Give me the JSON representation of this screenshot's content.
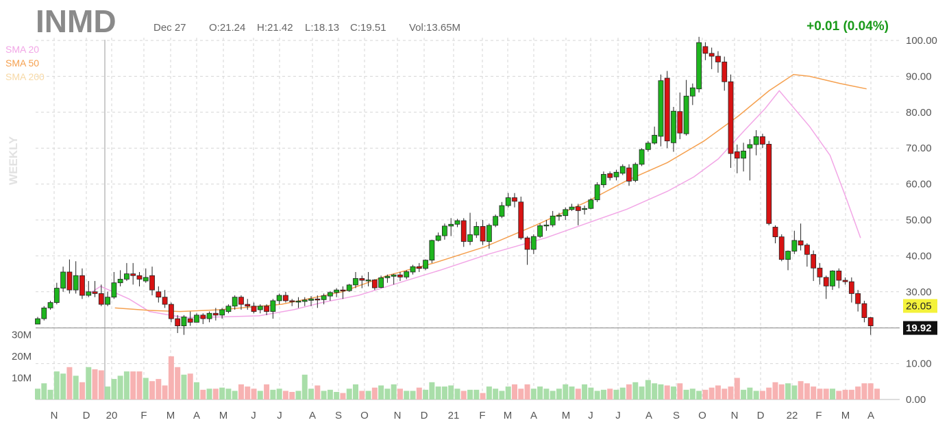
{
  "header": {
    "ticker": "INMD",
    "date": "Dec 27",
    "open": "O:21.24",
    "high": "H:21.42",
    "low": "L:18.13",
    "close": "C:19.51",
    "volume": "Vol:13.65M",
    "change": "+0.01 (0.04%)",
    "timeframe": "WEEKLY"
  },
  "legend": [
    {
      "label": "SMA 20",
      "color": "#f2a6e6"
    },
    {
      "label": "SMA 50",
      "color": "#f5a04f"
    },
    {
      "label": "SMA 200",
      "color": "#f7d9a6"
    }
  ],
  "colors": {
    "up": "#1eb51e",
    "down": "#d81313",
    "vol_up": "#a9dea9",
    "vol_down": "#f7b2b2",
    "grid": "#d6d6d6"
  },
  "chart_data": {
    "type": "candlestick",
    "price_axis": {
      "min": 0,
      "max": 100,
      "ticks": [
        "100.00",
        "90.00",
        "80.00",
        "70.00",
        "60.00",
        "50.00",
        "40.00",
        "30.00",
        "20.00",
        "10.00",
        "0.00"
      ]
    },
    "volume_axis": {
      "ticks": [
        "30M",
        "20M",
        "10M"
      ],
      "max_millions": 30
    },
    "x_labels": [
      "N",
      "D",
      "20",
      "F",
      "M",
      "A",
      "M",
      "J",
      "J",
      "A",
      "S",
      "O",
      "N",
      "D",
      "21",
      "F",
      "M",
      "A",
      "M",
      "J",
      "J",
      "A",
      "S",
      "O",
      "N",
      "D",
      "22",
      "F",
      "M",
      "A"
    ],
    "price_labels": {
      "last": "26.05",
      "crosshair": "19.92"
    },
    "candles": [
      [
        21.0,
        22.5,
        21.0,
        23.0
      ],
      [
        22.5,
        25.5,
        22.0,
        26.0
      ],
      [
        25.5,
        27.0,
        25.0,
        27.5
      ],
      [
        27.0,
        31.0,
        26.5,
        32.5
      ],
      [
        31.0,
        35.5,
        30.0,
        37.0
      ],
      [
        35.5,
        30.5,
        29.5,
        39.0
      ],
      [
        30.5,
        34.5,
        29.5,
        38.5
      ],
      [
        34.5,
        29.0,
        28.0,
        36.5
      ],
      [
        29.0,
        30.0,
        28.5,
        33.0
      ],
      [
        30.0,
        29.5,
        28.5,
        33.0
      ],
      [
        29.5,
        26.5,
        26.0,
        32.0
      ],
      [
        26.5,
        28.5,
        26.0,
        30.0
      ],
      [
        28.5,
        32.5,
        28.0,
        35.5
      ],
      [
        32.5,
        33.5,
        31.5,
        36.0
      ],
      [
        33.5,
        35.0,
        33.0,
        38.0
      ],
      [
        35.0,
        34.5,
        32.0,
        38.0
      ],
      [
        34.5,
        33.5,
        31.5,
        35.5
      ],
      [
        33.0,
        34.0,
        32.5,
        36.5
      ],
      [
        34.5,
        30.5,
        29.0,
        37.0
      ],
      [
        30.0,
        28.5,
        27.0,
        31.5
      ],
      [
        28.5,
        26.5,
        25.5,
        30.5
      ],
      [
        26.5,
        22.5,
        21.5,
        27.0
      ],
      [
        22.5,
        20.5,
        18.5,
        23.5
      ],
      [
        20.5,
        23.0,
        18.0,
        23.5
      ],
      [
        22.5,
        21.5,
        20.5,
        24.5
      ],
      [
        21.5,
        23.5,
        21.5,
        24.0
      ],
      [
        23.5,
        22.5,
        21.0,
        24.0
      ],
      [
        22.5,
        24.0,
        21.5,
        24.5
      ],
      [
        24.0,
        23.5,
        22.0,
        25.5
      ],
      [
        23.5,
        25.0,
        22.5,
        25.5
      ],
      [
        24.5,
        26.0,
        24.0,
        26.5
      ],
      [
        26.0,
        28.5,
        25.0,
        29.0
      ],
      [
        28.5,
        26.5,
        25.0,
        29.0
      ],
      [
        26.5,
        26.0,
        25.0,
        28.0
      ],
      [
        26.0,
        24.5,
        24.0,
        27.0
      ],
      [
        25.0,
        26.0,
        24.0,
        26.5
      ],
      [
        26.0,
        24.5,
        23.5,
        26.5
      ],
      [
        24.5,
        27.5,
        22.5,
        28.0
      ],
      [
        27.5,
        29.0,
        26.5,
        29.5
      ],
      [
        29.0,
        27.5,
        27.0,
        30.0
      ],
      [
        27.5,
        27.3,
        26.0,
        28.0
      ],
      [
        27.3,
        27.4,
        25.5,
        28.5
      ],
      [
        27.3,
        27.7,
        26.0,
        28.5
      ],
      [
        27.6,
        28.0,
        26.0,
        28.8
      ],
      [
        28.0,
        27.7,
        25.5,
        29.0
      ],
      [
        27.8,
        28.9,
        26.5,
        29.5
      ],
      [
        28.8,
        29.8,
        27.5,
        30.2
      ],
      [
        29.8,
        30.5,
        28.5,
        31.0
      ],
      [
        30.5,
        30.3,
        28.0,
        31.5
      ],
      [
        30.3,
        31.9,
        30.0,
        32.2
      ],
      [
        31.9,
        33.7,
        31.0,
        35.5
      ],
      [
        33.7,
        33.2,
        31.0,
        34.5
      ],
      [
        33.2,
        33.3,
        31.5,
        35.5
      ],
      [
        33.3,
        31.1,
        30.5,
        33.5
      ],
      [
        31.2,
        33.9,
        31.0,
        34.5
      ],
      [
        33.9,
        34.3,
        32.5,
        34.8
      ],
      [
        34.3,
        34.7,
        32.0,
        35.0
      ],
      [
        34.7,
        34.1,
        33.0,
        35.5
      ],
      [
        34.1,
        35.6,
        33.5,
        36.0
      ],
      [
        35.5,
        37.0,
        34.8,
        37.5
      ],
      [
        37.0,
        36.5,
        35.5,
        38.0
      ],
      [
        36.5,
        38.8,
        36.0,
        39.0
      ],
      [
        38.8,
        44.3,
        38.0,
        44.5
      ],
      [
        44.3,
        45.6,
        44.0,
        46.5
      ],
      [
        45.6,
        48.3,
        44.5,
        49.0
      ],
      [
        48.3,
        48.8,
        45.5,
        50.5
      ],
      [
        48.8,
        49.8,
        48.0,
        50.3
      ],
      [
        49.8,
        44.0,
        42.5,
        50.5
      ],
      [
        44.0,
        45.9,
        43.0,
        52.0
      ],
      [
        45.8,
        48.2,
        45.0,
        49.5
      ],
      [
        48.2,
        44.1,
        43.0,
        50.0
      ],
      [
        44.0,
        48.5,
        42.0,
        49.0
      ],
      [
        48.5,
        51.0,
        48.0,
        51.5
      ],
      [
        51.0,
        54.0,
        50.5,
        55.0
      ],
      [
        54.0,
        56.2,
        53.5,
        57.5
      ],
      [
        56.2,
        55.2,
        53.5,
        57.5
      ],
      [
        55.0,
        45.0,
        44.5,
        56.5
      ],
      [
        45.0,
        41.8,
        37.5,
        45.5
      ],
      [
        41.8,
        45.4,
        40.5,
        46.0
      ],
      [
        45.4,
        48.4,
        45.0,
        49.0
      ],
      [
        48.4,
        48.6,
        47.0,
        50.0
      ],
      [
        48.6,
        51.1,
        48.0,
        52.5
      ],
      [
        51.1,
        51.3,
        49.8,
        52.0
      ],
      [
        51.2,
        52.9,
        50.0,
        53.5
      ],
      [
        52.9,
        53.6,
        52.5,
        54.5
      ],
      [
        53.7,
        52.6,
        48.5,
        54.5
      ],
      [
        53.0,
        53.2,
        51.5,
        54.0
      ],
      [
        53.2,
        55.6,
        53.0,
        56.0
      ],
      [
        55.6,
        59.8,
        55.0,
        60.5
      ],
      [
        59.8,
        62.7,
        59.0,
        63.5
      ],
      [
        62.9,
        61.8,
        61.0,
        63.5
      ],
      [
        62.0,
        63.3,
        61.0,
        64.0
      ],
      [
        63.0,
        64.9,
        62.5,
        65.5
      ],
      [
        64.5,
        60.8,
        59.5,
        65.5
      ],
      [
        61.0,
        65.5,
        60.5,
        66.0
      ],
      [
        65.5,
        69.6,
        65.0,
        70.0
      ],
      [
        69.6,
        71.4,
        69.0,
        72.0
      ],
      [
        71.4,
        73.6,
        71.0,
        76.0
      ],
      [
        73.3,
        88.8,
        70.5,
        90.5
      ],
      [
        89.5,
        72.0,
        70.0,
        91.5
      ],
      [
        71.5,
        80.3,
        69.0,
        81.5
      ],
      [
        80.2,
        74.2,
        72.5,
        85.5
      ],
      [
        74.0,
        84.5,
        73.5,
        89.0
      ],
      [
        84.5,
        86.8,
        82.0,
        88.0
      ],
      [
        86.5,
        99.4,
        85.5,
        101.0
      ],
      [
        98.3,
        96.4,
        94.5,
        99.5
      ],
      [
        96.4,
        95.6,
        92.0,
        98.0
      ],
      [
        95.6,
        94.0,
        91.0,
        97.0
      ],
      [
        94.0,
        88.5,
        86.0,
        95.5
      ],
      [
        88.5,
        68.5,
        64.5,
        90.5
      ],
      [
        69.0,
        67.2,
        63.0,
        71.0
      ],
      [
        67.2,
        69.2,
        63.5,
        71.5
      ],
      [
        70.0,
        71.0,
        61.0,
        72.5
      ],
      [
        71.0,
        73.2,
        68.0,
        75.0
      ],
      [
        73.2,
        71.1,
        70.0,
        74.0
      ],
      [
        71.1,
        49.0,
        48.5,
        72.0
      ],
      [
        48.0,
        45.3,
        43.5,
        48.5
      ],
      [
        45.3,
        39.0,
        38.5,
        46.0
      ],
      [
        39.0,
        41.3,
        36.0,
        41.5
      ],
      [
        41.3,
        44.3,
        40.5,
        47.0
      ],
      [
        44.2,
        43.0,
        41.5,
        49.0
      ],
      [
        43.0,
        40.4,
        37.0,
        43.5
      ],
      [
        40.4,
        36.6,
        33.0,
        41.5
      ],
      [
        36.6,
        34.1,
        32.0,
        38.0
      ],
      [
        34.0,
        31.6,
        28.0,
        34.5
      ],
      [
        31.6,
        35.8,
        30.5,
        36.0
      ],
      [
        35.8,
        33.2,
        31.0,
        36.5
      ],
      [
        33.2,
        32.8,
        32.0,
        34.0
      ],
      [
        32.8,
        29.5,
        27.0,
        34.0
      ],
      [
        29.5,
        26.7,
        24.5,
        30.5
      ],
      [
        26.7,
        22.8,
        21.5,
        27.5
      ],
      [
        22.8,
        20.5,
        18.0,
        23.0
      ]
    ],
    "volume_millions": [
      5.0,
      7.5,
      4.5,
      13.0,
      12.0,
      15.0,
      11.0,
      8.0,
      15.0,
      14.0,
      13.5,
      6.0,
      9.5,
      11.0,
      13.0,
      13.0,
      13.0,
      10.0,
      8.5,
      9.5,
      6.5,
      20.0,
      15.0,
      11.5,
      12.0,
      8.0,
      4.5,
      5.0,
      5.0,
      5.5,
      5.0,
      4.0,
      7.0,
      6.0,
      5.0,
      4.0,
      7.0,
      4.5,
      5.0,
      4.0,
      3.5,
      4.0,
      11.5,
      5.0,
      6.5,
      4.0,
      4.5,
      3.5,
      3.0,
      5.0,
      7.0,
      4.0,
      4.0,
      5.5,
      6.5,
      5.0,
      7.0,
      5.0,
      4.0,
      4.0,
      5.5,
      4.5,
      8.0,
      6.0,
      6.0,
      6.5,
      5.0,
      4.0,
      4.5,
      4.5,
      3.0,
      6.0,
      5.0,
      4.0,
      6.0,
      7.0,
      5.0,
      7.0,
      5.0,
      6.0,
      5.0,
      4.0,
      5.0,
      7.0,
      6.0,
      5.0,
      7.0,
      5.5,
      4.0,
      4.5,
      5.0,
      4.5,
      5.5,
      7.0,
      8.0,
      6.0,
      9.0,
      7.5,
      7.0,
      6.5,
      6.0,
      7.5,
      4.5,
      5.0,
      4.0,
      4.5,
      5.5,
      6.5,
      5.0,
      6.0,
      10.0,
      4.5,
      5.5,
      4.0,
      4.0,
      5.5,
      8.0,
      7.0,
      7.5,
      6.5,
      8.5,
      7.5,
      6.0,
      5.0,
      5.0,
      5.0,
      4.0,
      4.5,
      4.5,
      6.0,
      7.5,
      7.5,
      5.0
    ],
    "sma20": [
      [
        24,
        29.0
      ],
      [
        31,
        31.5
      ],
      [
        45,
        28.0
      ],
      [
        55,
        24.5
      ],
      [
        72,
        22.8
      ],
      [
        90,
        23.0
      ],
      [
        109,
        23.3
      ],
      [
        126,
        25.0
      ],
      [
        140,
        27.0
      ],
      [
        158,
        29.0
      ],
      [
        175,
        32.0
      ],
      [
        198,
        36.0
      ],
      [
        222,
        40.5
      ],
      [
        250,
        45.0
      ],
      [
        270,
        49.0
      ],
      [
        290,
        53.0
      ],
      [
        310,
        58.0
      ],
      [
        323,
        62.0
      ],
      [
        335,
        67.0
      ],
      [
        348,
        75.0
      ],
      [
        358,
        81.0
      ],
      [
        365,
        86.0
      ],
      [
        371,
        82.0
      ],
      [
        380,
        76.0
      ],
      [
        390,
        68.0
      ],
      [
        398,
        56.0
      ],
      [
        405,
        45.0
      ]
    ],
    "sma50": [
      [
        38,
        25.5
      ],
      [
        55,
        24.8
      ],
      [
        70,
        24.5
      ],
      [
        90,
        25.0
      ],
      [
        120,
        26.5
      ],
      [
        150,
        30.0
      ],
      [
        172,
        34.5
      ],
      [
        195,
        38.0
      ],
      [
        220,
        42.5
      ],
      [
        245,
        48.5
      ],
      [
        270,
        55.0
      ],
      [
        290,
        61.0
      ],
      [
        310,
        66.0
      ],
      [
        328,
        72.0
      ],
      [
        345,
        79.0
      ],
      [
        360,
        86.0
      ],
      [
        372,
        90.5
      ],
      [
        380,
        90.0
      ],
      [
        395,
        88.0
      ],
      [
        408,
        86.5
      ]
    ]
  }
}
